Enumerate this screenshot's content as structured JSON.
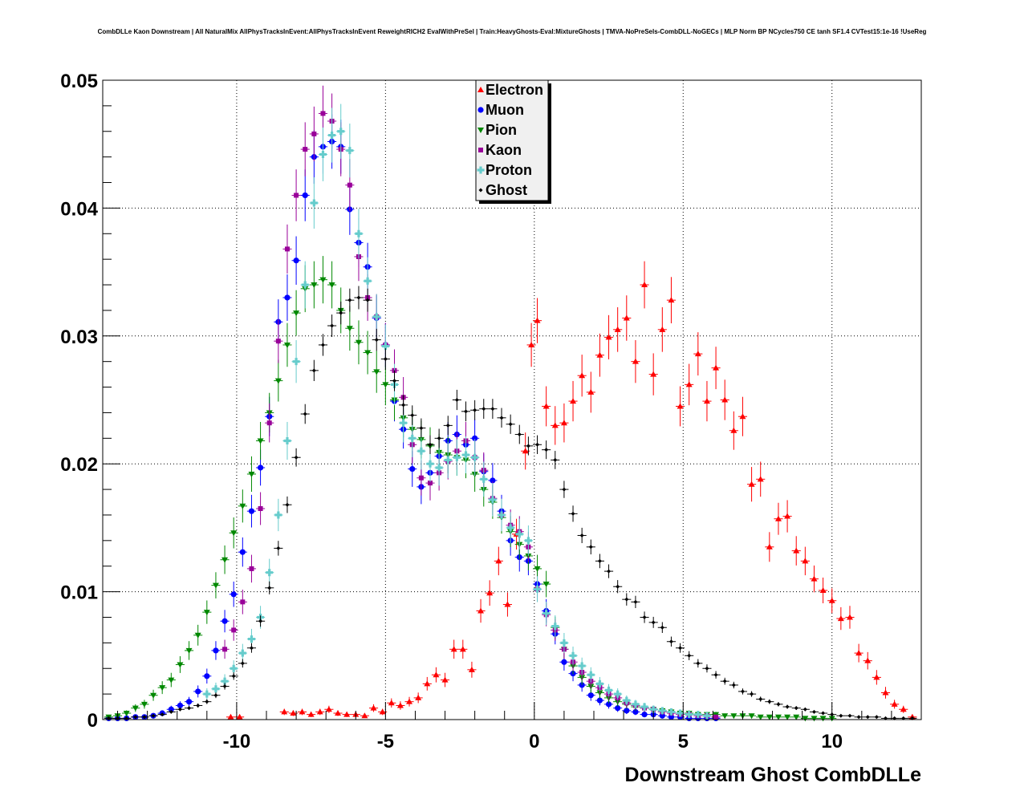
{
  "chart_data": {
    "type": "scatter",
    "title": "CombDLLe Kaon Downstream | All NaturalMix AllPhysTracksInEvent:AllPhysTracksInEvent ReweightRICH2 EvalWithPreSel | Train:HeavyGhosts-Eval:MixtureGhosts | TMVA-NoPreSels-CombDLL-NoGECs | MLP Norm BP NCycles750 CE tanh SF1.4 CVTest15:1e-16 !UseReg",
    "xlabel": "Downstream Ghost CombDLLe",
    "ylabel": "",
    "xlim": [
      -14.5,
      13
    ],
    "ylim": [
      0,
      0.05
    ],
    "grid": true,
    "legend_position": "top-center",
    "x_ticks": [
      -10,
      -5,
      0,
      5,
      10
    ],
    "x_tick_labels": [
      "-10",
      "-5",
      "0",
      "5",
      "10"
    ],
    "y_ticks": [
      0,
      0.01,
      0.02,
      0.03,
      0.04,
      0.05
    ],
    "y_tick_labels": [
      "0",
      "0.01",
      "0.02",
      "0.03",
      "0.04",
      "0.05"
    ],
    "series": [
      {
        "name": "Electron",
        "color": "#ff0000",
        "marker": "triangle-up",
        "x": [
          -10.2,
          -9.9,
          -8.4,
          -8.1,
          -7.8,
          -7.5,
          -7.2,
          -6.9,
          -6.6,
          -6.3,
          -6.0,
          -5.7,
          -5.4,
          -5.1,
          -4.8,
          -4.5,
          -4.2,
          -3.9,
          -3.6,
          -3.3,
          -3.0,
          -2.7,
          -2.4,
          -2.1,
          -1.8,
          -1.5,
          -1.2,
          -0.9,
          -0.6,
          -0.3,
          -0.1,
          0.1,
          0.4,
          0.7,
          1.0,
          1.3,
          1.6,
          1.9,
          2.2,
          2.5,
          2.8,
          3.1,
          3.4,
          3.7,
          4.0,
          4.3,
          4.6,
          4.9,
          5.2,
          5.5,
          5.8,
          6.1,
          6.4,
          6.7,
          7.0,
          7.3,
          7.6,
          7.9,
          8.2,
          8.5,
          8.8,
          9.1,
          9.4,
          9.7,
          10.0,
          10.3,
          10.6,
          10.9,
          11.2,
          11.5,
          11.8,
          12.1,
          12.4,
          12.7
        ],
        "y": [
          0.0002,
          0.0002,
          0.0006,
          0.0005,
          0.0006,
          0.0004,
          0.0006,
          0.0008,
          0.0005,
          0.0004,
          0.0004,
          0.0003,
          0.0009,
          0.0006,
          0.0013,
          0.0011,
          0.0014,
          0.0017,
          0.0028,
          0.0035,
          0.0031,
          0.0055,
          0.0055,
          0.0039,
          0.0085,
          0.0099,
          0.0124,
          0.009,
          0.0145,
          0.021,
          0.0293,
          0.0312,
          0.0245,
          0.023,
          0.0232,
          0.0249,
          0.0269,
          0.0256,
          0.0285,
          0.0299,
          0.0305,
          0.0314,
          0.028,
          0.034,
          0.027,
          0.0305,
          0.0328,
          0.0245,
          0.0262,
          0.0286,
          0.0249,
          0.0275,
          0.025,
          0.0226,
          0.0237,
          0.0184,
          0.0188,
          0.0135,
          0.0157,
          0.0159,
          0.0132,
          0.0124,
          0.011,
          0.0101,
          0.0093,
          0.0079,
          0.008,
          0.0052,
          0.0046,
          0.0033,
          0.0021,
          0.0012,
          0.0008,
          0.0002
        ]
      },
      {
        "name": "Muon",
        "color": "#0000ff",
        "marker": "circle",
        "x": [
          -14.3,
          -14.0,
          -13.7,
          -13.4,
          -13.1,
          -12.8,
          -12.5,
          -12.2,
          -11.9,
          -11.6,
          -11.3,
          -11.0,
          -10.7,
          -10.4,
          -10.1,
          -9.8,
          -9.5,
          -9.2,
          -8.9,
          -8.6,
          -8.3,
          -8.0,
          -7.7,
          -7.4,
          -7.1,
          -6.8,
          -6.5,
          -6.2,
          -5.9,
          -5.6,
          -5.3,
          -5.0,
          -4.7,
          -4.4,
          -4.1,
          -3.8,
          -3.5,
          -3.2,
          -2.9,
          -2.6,
          -2.3,
          -2.0,
          -1.7,
          -1.4,
          -1.1,
          -0.8,
          -0.5,
          -0.2,
          0.1,
          0.4,
          0.7,
          1.0,
          1.3,
          1.6,
          1.9,
          2.2,
          2.5,
          2.8,
          3.1,
          3.4,
          3.7,
          4.0,
          4.3,
          4.6,
          4.9,
          5.2,
          5.5,
          5.8,
          6.1
        ],
        "y": [
          0.0001,
          0.0001,
          0.0001,
          0.0002,
          0.0002,
          0.0003,
          0.0005,
          0.0008,
          0.0011,
          0.0014,
          0.0022,
          0.0034,
          0.0054,
          0.0077,
          0.0098,
          0.0131,
          0.0163,
          0.0197,
          0.0237,
          0.0311,
          0.033,
          0.0359,
          0.041,
          0.044,
          0.0448,
          0.0452,
          0.0448,
          0.0399,
          0.0373,
          0.0354,
          0.0314,
          0.0293,
          0.0249,
          0.0227,
          0.0196,
          0.0182,
          0.0193,
          0.0206,
          0.0218,
          0.0223,
          0.0215,
          0.022,
          0.0194,
          0.0187,
          0.0163,
          0.014,
          0.0127,
          0.0124,
          0.0106,
          0.0085,
          0.0067,
          0.0045,
          0.0036,
          0.0027,
          0.0019,
          0.0015,
          0.0012,
          0.0009,
          0.0007,
          0.0006,
          0.0004,
          0.0004,
          0.0003,
          0.0002,
          0.0002,
          0.0001,
          0.0001,
          0.0001,
          0.0001
        ]
      },
      {
        "name": "Pion",
        "color": "#008800",
        "marker": "triangle-down",
        "x": [
          -14.3,
          -14.0,
          -13.7,
          -13.4,
          -13.1,
          -12.8,
          -12.5,
          -12.2,
          -11.9,
          -11.6,
          -11.3,
          -11.0,
          -10.7,
          -10.4,
          -10.1,
          -9.8,
          -9.5,
          -9.2,
          -8.9,
          -8.6,
          -8.3,
          -8.0,
          -7.7,
          -7.4,
          -7.1,
          -6.8,
          -6.5,
          -6.2,
          -5.9,
          -5.6,
          -5.3,
          -5.0,
          -4.7,
          -4.4,
          -4.1,
          -3.8,
          -3.5,
          -3.2,
          -2.9,
          -2.6,
          -2.3,
          -2.0,
          -1.7,
          -1.4,
          -1.1,
          -0.8,
          -0.5,
          -0.2,
          0.1,
          0.4,
          0.7,
          1.0,
          1.3,
          1.6,
          1.9,
          2.2,
          2.5,
          2.8,
          3.1,
          3.4,
          3.7,
          4.0,
          4.3,
          4.6,
          4.9,
          5.2,
          5.5,
          5.8,
          6.1,
          6.4,
          6.7,
          7.0,
          7.3,
          7.6,
          7.9,
          8.2,
          8.5,
          8.8,
          9.1,
          9.4,
          9.7,
          10.0
        ],
        "y": [
          0.0002,
          0.0003,
          0.0005,
          0.0009,
          0.0012,
          0.0019,
          0.0025,
          0.0031,
          0.0043,
          0.0054,
          0.0066,
          0.0084,
          0.0105,
          0.0125,
          0.0146,
          0.0167,
          0.0192,
          0.0218,
          0.024,
          0.0265,
          0.0293,
          0.0318,
          0.0337,
          0.034,
          0.0344,
          0.034,
          0.032,
          0.0306,
          0.0295,
          0.0287,
          0.0272,
          0.0262,
          0.025,
          0.0236,
          0.0227,
          0.0219,
          0.0214,
          0.0209,
          0.0207,
          0.0205,
          0.0203,
          0.0192,
          0.018,
          0.017,
          0.0158,
          0.0147,
          0.0137,
          0.0128,
          0.0118,
          0.0106,
          0.0072,
          0.0055,
          0.0042,
          0.0033,
          0.0026,
          0.0021,
          0.0017,
          0.0014,
          0.0012,
          0.001,
          0.0009,
          0.0008,
          0.0007,
          0.0006,
          0.0005,
          0.0005,
          0.0004,
          0.0004,
          0.0004,
          0.0003,
          0.0003,
          0.0003,
          0.0003,
          0.0002,
          0.0002,
          0.0002,
          0.0002,
          0.0002,
          0.0001,
          0.0001,
          0.0001,
          0.0001
        ]
      },
      {
        "name": "Kaon",
        "color": "#990099",
        "marker": "square",
        "x": [
          -10.4,
          -10.1,
          -9.8,
          -9.5,
          -9.2,
          -8.9,
          -8.6,
          -8.3,
          -8.0,
          -7.7,
          -7.4,
          -7.1,
          -6.8,
          -6.5,
          -6.2,
          -5.9,
          -5.6,
          -5.3,
          -5.0,
          -4.7,
          -4.4,
          -4.1,
          -3.8,
          -3.5,
          -3.2,
          -2.9,
          -2.6,
          -2.3,
          -2.0,
          -1.7,
          -1.4,
          -1.1,
          -0.8,
          -0.5,
          -0.2,
          0.1,
          0.4,
          0.7,
          1.0,
          1.3,
          1.6,
          1.9,
          2.2,
          2.5,
          2.8,
          3.1,
          3.4,
          3.7,
          4.0,
          4.3,
          4.6,
          4.9,
          5.2,
          5.5,
          5.8,
          6.1
        ],
        "y": [
          0.0055,
          0.007,
          0.0092,
          0.0118,
          0.0165,
          0.0232,
          0.0296,
          0.0368,
          0.041,
          0.0446,
          0.0458,
          0.0474,
          0.0468,
          0.0446,
          0.0418,
          0.0362,
          0.033,
          0.0315,
          0.0293,
          0.0273,
          0.0252,
          0.0215,
          0.0189,
          0.0185,
          0.0193,
          0.0202,
          0.021,
          0.0218,
          0.0205,
          0.0195,
          0.0173,
          0.016,
          0.0152,
          0.0147,
          0.0135,
          0.0102,
          0.0082,
          0.007,
          0.0055,
          0.0045,
          0.0037,
          0.003,
          0.0025,
          0.002,
          0.0017,
          0.0013,
          0.0011,
          0.0009,
          0.0008,
          0.0006,
          0.0005,
          0.0004,
          0.0004,
          0.0003,
          0.0003,
          0.0002
        ]
      },
      {
        "name": "Proton",
        "color": "#66cccc",
        "marker": "cross",
        "x": [
          -11.0,
          -10.7,
          -10.4,
          -10.1,
          -9.8,
          -9.5,
          -9.2,
          -8.9,
          -8.6,
          -8.3,
          -8.0,
          -7.7,
          -7.4,
          -7.1,
          -6.8,
          -6.5,
          -6.2,
          -5.9,
          -5.6,
          -5.3,
          -5.0,
          -4.7,
          -4.4,
          -4.1,
          -3.8,
          -3.5,
          -3.2,
          -2.9,
          -2.6,
          -2.3,
          -2.0,
          -1.7,
          -1.4,
          -1.1,
          -0.8,
          -0.5,
          -0.2,
          0.1,
          0.4,
          0.7,
          1.0,
          1.3,
          1.6,
          1.9,
          2.2,
          2.5,
          2.8,
          3.1,
          3.4,
          3.7,
          4.0,
          4.3,
          4.6,
          4.9,
          5.2,
          5.5,
          5.8
        ],
        "y": [
          0.002,
          0.0024,
          0.003,
          0.004,
          0.0052,
          0.0063,
          0.008,
          0.0115,
          0.016,
          0.0218,
          0.028,
          0.034,
          0.0404,
          0.0442,
          0.0457,
          0.046,
          0.0445,
          0.038,
          0.0343,
          0.0315,
          0.0292,
          0.0262,
          0.0232,
          0.022,
          0.021,
          0.02,
          0.0197,
          0.0203,
          0.0205,
          0.0207,
          0.0205,
          0.0188,
          0.0172,
          0.016,
          0.015,
          0.0145,
          0.014,
          0.0102,
          0.0083,
          0.0073,
          0.006,
          0.005,
          0.0042,
          0.0035,
          0.0028,
          0.0023,
          0.002,
          0.0015,
          0.0012,
          0.001,
          0.0008,
          0.0007,
          0.0006,
          0.0005,
          0.0004,
          0.0004,
          0.0003
        ]
      },
      {
        "name": "Ghost",
        "color": "#000000",
        "marker": "diamond",
        "x": [
          -14.3,
          -14.0,
          -13.7,
          -13.4,
          -13.1,
          -12.8,
          -12.5,
          -12.2,
          -11.9,
          -11.6,
          -11.3,
          -11.0,
          -10.7,
          -10.4,
          -10.1,
          -9.8,
          -9.5,
          -9.2,
          -8.9,
          -8.6,
          -8.3,
          -8.0,
          -7.7,
          -7.4,
          -7.1,
          -6.8,
          -6.5,
          -6.2,
          -5.9,
          -5.6,
          -5.3,
          -5.0,
          -4.7,
          -4.4,
          -4.1,
          -3.8,
          -3.5,
          -3.2,
          -2.9,
          -2.6,
          -2.3,
          -2.0,
          -1.7,
          -1.4,
          -1.1,
          -0.8,
          -0.5,
          -0.2,
          0.1,
          0.4,
          0.7,
          1.0,
          1.3,
          1.6,
          1.9,
          2.2,
          2.5,
          2.8,
          3.1,
          3.4,
          3.7,
          4.0,
          4.3,
          4.6,
          4.9,
          5.2,
          5.5,
          5.8,
          6.1,
          6.4,
          6.7,
          7.0,
          7.3,
          7.6,
          7.9,
          8.2,
          8.5,
          8.8,
          9.1,
          9.4,
          9.7,
          10.0,
          10.3,
          10.6,
          10.9,
          11.2,
          11.5,
          11.8,
          12.1,
          12.4,
          12.7
        ],
        "y": [
          0.0001,
          0.0001,
          0.0001,
          0.0002,
          0.0002,
          0.0003,
          0.0004,
          0.0006,
          0.0008,
          0.0009,
          0.0011,
          0.0014,
          0.0019,
          0.0026,
          0.0034,
          0.0044,
          0.0056,
          0.0077,
          0.0103,
          0.0134,
          0.0168,
          0.0205,
          0.0239,
          0.0273,
          0.0293,
          0.0308,
          0.0318,
          0.0328,
          0.033,
          0.0328,
          0.0297,
          0.0282,
          0.0265,
          0.0246,
          0.0238,
          0.0228,
          0.0215,
          0.022,
          0.023,
          0.025,
          0.0241,
          0.0242,
          0.0243,
          0.0243,
          0.0236,
          0.0231,
          0.0223,
          0.0214,
          0.0215,
          0.0211,
          0.0203,
          0.018,
          0.0161,
          0.0144,
          0.0135,
          0.0124,
          0.0116,
          0.0104,
          0.0094,
          0.0092,
          0.008,
          0.0076,
          0.0072,
          0.0061,
          0.0056,
          0.005,
          0.0044,
          0.004,
          0.0035,
          0.003,
          0.0027,
          0.0022,
          0.002,
          0.0016,
          0.0014,
          0.0012,
          0.001,
          0.0009,
          0.0008,
          0.0006,
          0.0005,
          0.0004,
          0.0003,
          0.0003,
          0.0002,
          0.0002,
          0.0002,
          0.0001,
          0.0001,
          0.0001,
          0.0001
        ]
      }
    ]
  }
}
